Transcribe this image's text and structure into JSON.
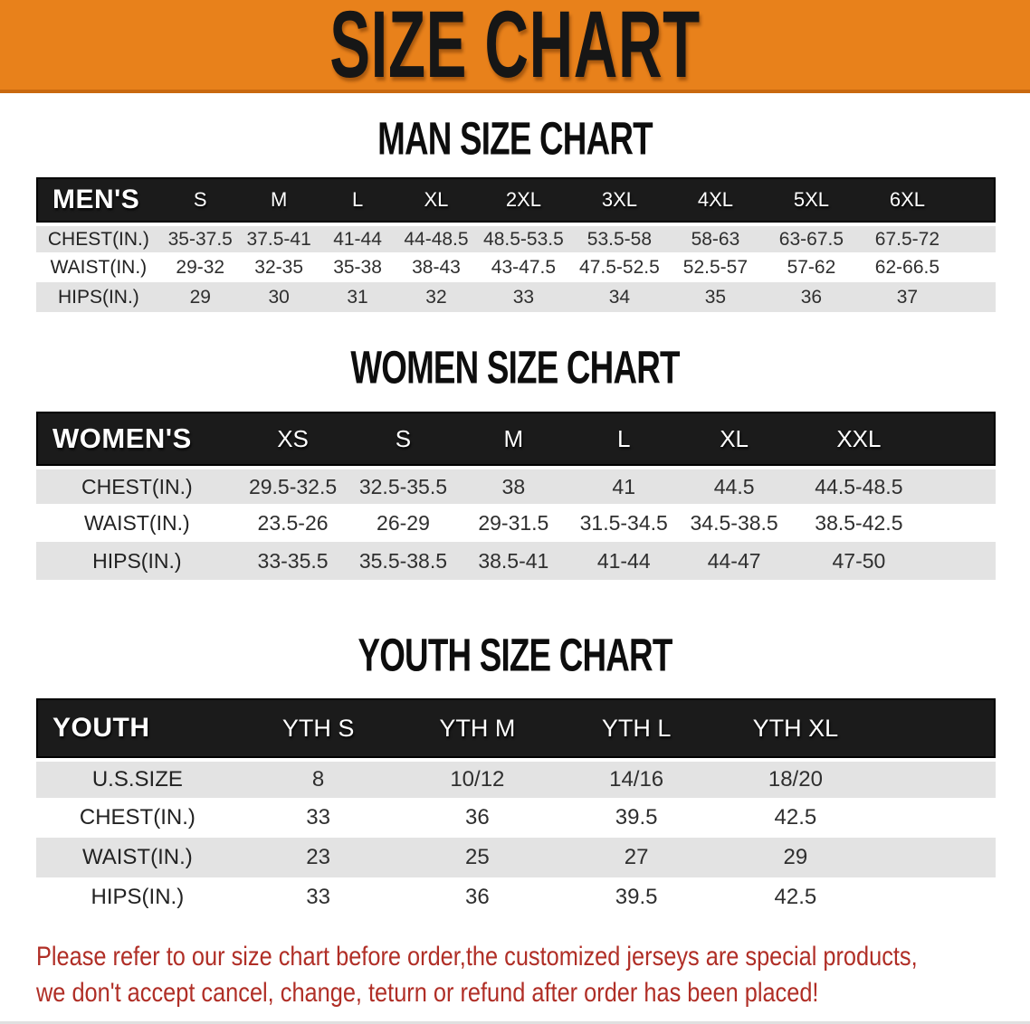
{
  "banner": {
    "title": "SIZE CHART"
  },
  "sections": [
    {
      "heading": "MAN SIZE CHART",
      "table": {
        "header_label": "MEN'S",
        "sizes": [
          "S",
          "M",
          "L",
          "XL",
          "2XL",
          "3XL",
          "4XL",
          "5XL",
          "6XL"
        ],
        "rows": [
          {
            "label": "CHEST(IN.)",
            "values": [
              "35-37.5",
              "37.5-41",
              "41-44",
              "44-48.5",
              "48.5-53.5",
              "53.5-58",
              "58-63",
              "63-67.5",
              "67.5-72"
            ]
          },
          {
            "label": "WAIST(IN.)",
            "values": [
              "29-32",
              "32-35",
              "35-38",
              "38-43",
              "43-47.5",
              "47.5-52.5",
              "52.5-57",
              "57-62",
              "62-66.5"
            ]
          },
          {
            "label": "HIPS(IN.)",
            "values": [
              "29",
              "30",
              "31",
              "32",
              "33",
              "34",
              "35",
              "36",
              "37"
            ]
          }
        ]
      }
    },
    {
      "heading": "WOMEN SIZE CHART",
      "table": {
        "header_label": "WOMEN'S",
        "sizes": [
          "XS",
          "S",
          "M",
          "L",
          "XL",
          "XXL"
        ],
        "rows": [
          {
            "label": "CHEST(IN.)",
            "values": [
              "29.5-32.5",
              "32.5-35.5",
              "38",
              "41",
              "44.5",
              "44.5-48.5"
            ]
          },
          {
            "label": "WAIST(IN.)",
            "values": [
              "23.5-26",
              "26-29",
              "29-31.5",
              "31.5-34.5",
              "34.5-38.5",
              "38.5-42.5"
            ]
          },
          {
            "label": "HIPS(IN.)",
            "values": [
              "33-35.5",
              "35.5-38.5",
              "38.5-41",
              "41-44",
              "44-47",
              "47-50"
            ]
          }
        ]
      }
    },
    {
      "heading": "YOUTH SIZE CHART",
      "table": {
        "header_label": "YOUTH",
        "sizes": [
          "YTH S",
          "YTH M",
          "YTH L",
          "YTH XL"
        ],
        "rows": [
          {
            "label": "U.S.SIZE",
            "values": [
              "8",
              "10/12",
              "14/16",
              "18/20"
            ]
          },
          {
            "label": "CHEST(IN.)",
            "values": [
              "33",
              "36",
              "39.5",
              "42.5"
            ]
          },
          {
            "label": "WAIST(IN.)",
            "values": [
              "23",
              "25",
              "27",
              "29"
            ]
          },
          {
            "label": "HIPS(IN.)",
            "values": [
              "33",
              "36",
              "39.5",
              "42.5"
            ]
          }
        ]
      }
    }
  ],
  "footer": {
    "line1": "Please refer to our size chart before order,the customized jerseys are special products,",
    "line2": "we don't accept cancel, change, teturn or refund after order has been placed!"
  },
  "colors": {
    "banner_bg": "#E8811B",
    "banner_edge": "#C9690F",
    "table_header_bg": "#1B1B1B",
    "row_stripe": "#E3E3E3",
    "cell_text": "#2F2F2F",
    "disclaimer_text": "#B02E26"
  }
}
